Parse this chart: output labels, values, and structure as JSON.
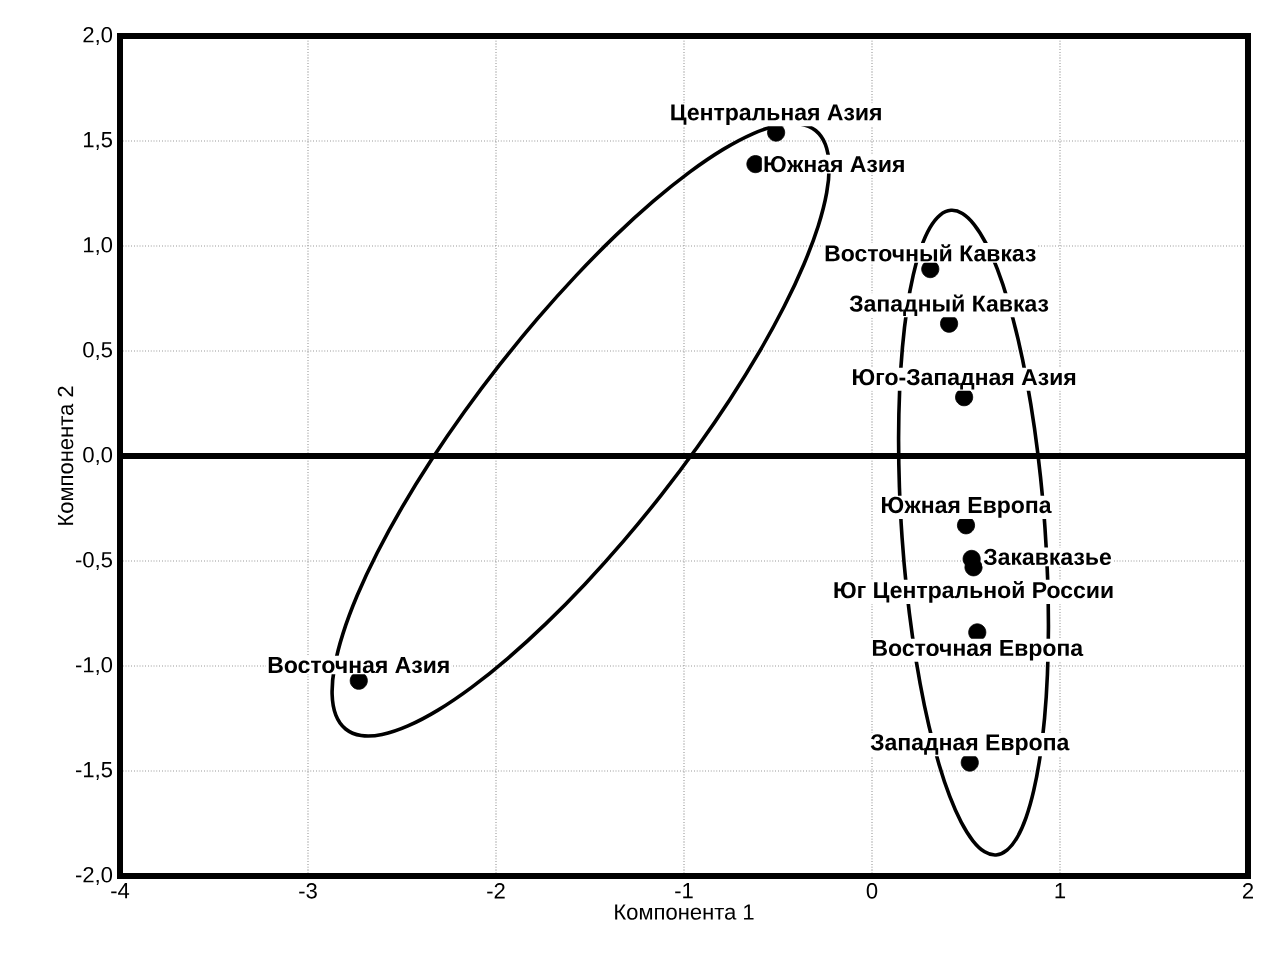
{
  "chart_data": {
    "type": "scatter",
    "xlabel": "Компонента 1",
    "ylabel": "Компонента 2",
    "xlim": [
      -4,
      2
    ],
    "ylim": [
      -2,
      2
    ],
    "xticks": [
      -4,
      -3,
      -2,
      -1,
      0,
      1,
      2
    ],
    "yticks": [
      {
        "value": -2,
        "label": "-2,0"
      },
      {
        "value": -1.5,
        "label": "-1,5"
      },
      {
        "value": -1,
        "label": "-1,0"
      },
      {
        "value": -0.5,
        "label": "-0,5"
      },
      {
        "value": 0,
        "label": "0,0"
      },
      {
        "value": 0.5,
        "label": "0,5"
      },
      {
        "value": 1,
        "label": "1,0"
      },
      {
        "value": 1.5,
        "label": "1,5"
      },
      {
        "value": 2,
        "label": "2,0"
      }
    ],
    "grid": true,
    "marker": "circle",
    "ref_lines": [
      {
        "axis": "y",
        "value": 0
      }
    ],
    "series": [
      {
        "color": "#000000",
        "x": [
          -0.51,
          -0.62,
          0.31,
          0.41,
          0.49,
          0.5,
          0.53,
          0.54,
          0.56,
          0.52,
          -2.73
        ],
        "values": [
          1.54,
          1.39,
          0.89,
          0.63,
          0.28,
          -0.33,
          -0.49,
          -0.53,
          -0.84,
          -1.46,
          -1.07
        ]
      }
    ],
    "annotations": [
      {
        "text": "Центральная Азия",
        "x": -0.51,
        "y": 1.54
      },
      {
        "text": "Южная Азия",
        "x": -0.62,
        "y": 1.39
      },
      {
        "text": "Восточный Кавказ",
        "x": 0.31,
        "y": 0.89
      },
      {
        "text": "Западный Кавказ",
        "x": 0.41,
        "y": 0.63
      },
      {
        "text": "Юго-Западная Азия",
        "x": 0.49,
        "y": 0.28
      },
      {
        "text": "Южная Европа",
        "x": 0.5,
        "y": -0.33
      },
      {
        "text": "Закавказье",
        "x": 0.53,
        "y": -0.49
      },
      {
        "text": "Юг Центральной России",
        "x": 0.54,
        "y": -0.53
      },
      {
        "text": "Восточная Европа",
        "x": 0.56,
        "y": -0.84
      },
      {
        "text": "Западная Европа",
        "x": 0.52,
        "y": -1.46
      },
      {
        "text": "Восточная Азия",
        "x": -2.73,
        "y": -1.07
      }
    ]
  }
}
